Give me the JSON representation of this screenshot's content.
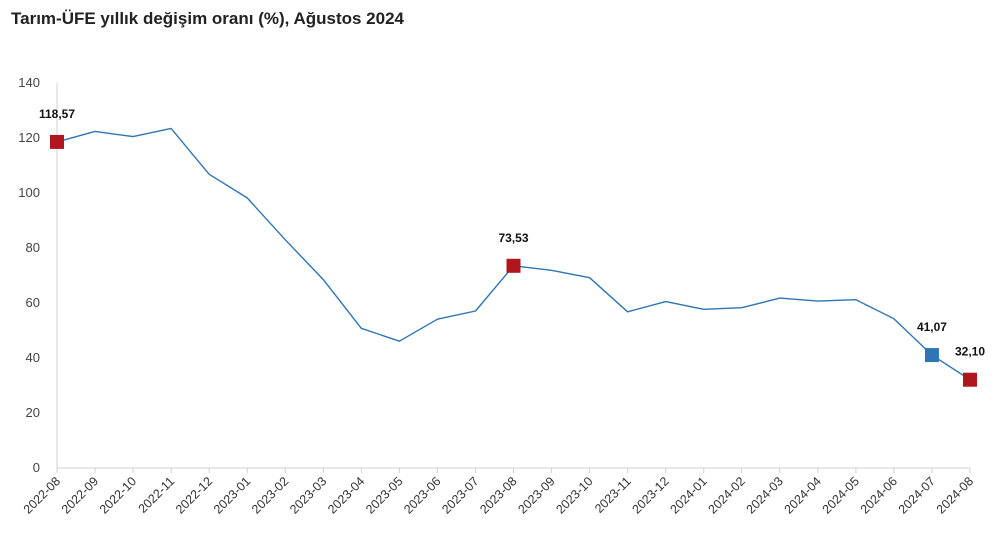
{
  "chart_data": {
    "type": "line",
    "title": "Tarım-ÜFE yıllık değişim oranı (%), Ağustos 2024",
    "xlabel": "",
    "ylabel": "",
    "ylim": [
      0,
      140
    ],
    "yticks": [
      0,
      20,
      40,
      60,
      80,
      100,
      120,
      140
    ],
    "categories": [
      "2022-08",
      "2022-09",
      "2022-10",
      "2022-11",
      "2022-12",
      "2023-01",
      "2023-02",
      "2023-03",
      "2023-04",
      "2023-05",
      "2023-06",
      "2023-07",
      "2023-08",
      "2023-09",
      "2023-10",
      "2023-11",
      "2023-12",
      "2024-01",
      "2024-02",
      "2024-03",
      "2024-04",
      "2024-05",
      "2024-06",
      "2024-07",
      "2024-08"
    ],
    "series": [
      {
        "name": "Tarım-ÜFE yıllık değişim oranı (%)",
        "color": "#2e75b6",
        "values": [
          118.57,
          122.4,
          120.5,
          123.5,
          106.8,
          98.2,
          83.0,
          68.5,
          50.8,
          46.1,
          54.1,
          57.1,
          73.53,
          71.9,
          69.2,
          56.8,
          60.5,
          57.7,
          58.3,
          61.8,
          60.7,
          61.2,
          54.3,
          41.07,
          32.1
        ]
      }
    ],
    "highlighted_points": [
      {
        "index": 0,
        "label": "118,57",
        "color": "#b0161d"
      },
      {
        "index": 12,
        "label": "73,53",
        "color": "#b0161d"
      },
      {
        "index": 23,
        "label": "41,07",
        "color": "#2e75b6"
      },
      {
        "index": 24,
        "label": "32,10",
        "color": "#b0161d"
      }
    ],
    "grid": false,
    "legend": "none"
  }
}
